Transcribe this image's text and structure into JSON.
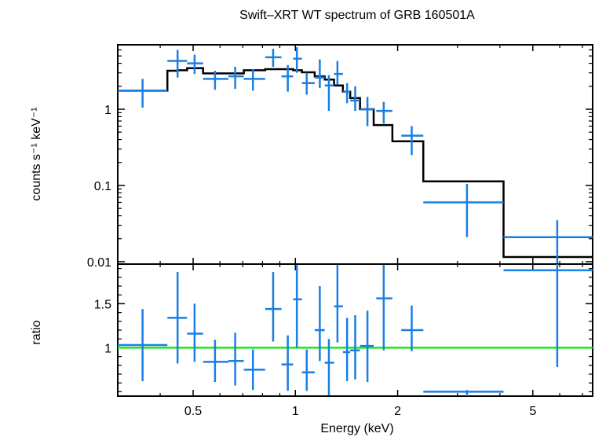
{
  "colors": {
    "data": "#1a7fe5",
    "model": "#000000",
    "ratio_line": "#1fe51f",
    "axes": "#000000"
  },
  "chart_data": [
    {
      "type": "scatter",
      "title": "Swift–XRT WT spectrum of GRB 160501A",
      "xlabel": "",
      "ylabel": "counts s⁻¹ keV⁻¹",
      "xscale": "log",
      "yscale": "log",
      "xlim": [
        0.3,
        7.5
      ],
      "ylim": [
        0.0093,
        7.0
      ],
      "yticks": [
        0.01,
        0.1,
        1
      ],
      "ytick_labels": [
        "0.01",
        "0.1",
        "1"
      ],
      "series": [
        {
          "kind": "data_with_errors",
          "points": [
            {
              "x": 0.355,
              "xlo": 0.3,
              "xhi": 0.42,
              "y": 1.75,
              "ylo": 1.05,
              "yhi": 2.5
            },
            {
              "x": 0.45,
              "xlo": 0.42,
              "xhi": 0.48,
              "y": 4.3,
              "ylo": 2.6,
              "yhi": 6.0
            },
            {
              "x": 0.505,
              "xlo": 0.48,
              "xhi": 0.535,
              "y": 4.0,
              "ylo": 2.9,
              "yhi": 5.2
            },
            {
              "x": 0.58,
              "xlo": 0.535,
              "xhi": 0.635,
              "y": 2.5,
              "ylo": 1.8,
              "yhi": 3.2
            },
            {
              "x": 0.665,
              "xlo": 0.635,
              "xhi": 0.705,
              "y": 2.7,
              "ylo": 1.85,
              "yhi": 3.6
            },
            {
              "x": 0.75,
              "xlo": 0.705,
              "xhi": 0.815,
              "y": 2.5,
              "ylo": 1.75,
              "yhi": 3.35
            },
            {
              "x": 0.86,
              "xlo": 0.815,
              "xhi": 0.91,
              "y": 4.8,
              "ylo": 3.6,
              "yhi": 6.2
            },
            {
              "x": 0.95,
              "xlo": 0.91,
              "xhi": 0.985,
              "y": 2.7,
              "ylo": 1.7,
              "yhi": 3.8
            },
            {
              "x": 1.01,
              "xlo": 0.985,
              "xhi": 1.045,
              "y": 4.6,
              "ylo": 3.0,
              "yhi": 6.5
            },
            {
              "x": 1.08,
              "xlo": 1.045,
              "xhi": 1.14,
              "y": 2.2,
              "ylo": 1.55,
              "yhi": 3.0
            },
            {
              "x": 1.18,
              "xlo": 1.14,
              "xhi": 1.22,
              "y": 2.6,
              "ylo": 1.9,
              "yhi": 4.5
            },
            {
              "x": 1.255,
              "xlo": 1.22,
              "xhi": 1.3,
              "y": 2.05,
              "ylo": 0.95,
              "yhi": 2.8
            },
            {
              "x": 1.33,
              "xlo": 1.3,
              "xhi": 1.38,
              "y": 2.9,
              "ylo": 2.1,
              "yhi": 4.3
            },
            {
              "x": 1.42,
              "xlo": 1.38,
              "xhi": 1.45,
              "y": 1.7,
              "ylo": 1.2,
              "yhi": 2.2
            },
            {
              "x": 1.5,
              "xlo": 1.45,
              "xhi": 1.55,
              "y": 1.3,
              "ylo": 0.95,
              "yhi": 2.0
            },
            {
              "x": 1.63,
              "xlo": 1.55,
              "xhi": 1.7,
              "y": 1.0,
              "ylo": 0.6,
              "yhi": 1.45
            },
            {
              "x": 1.82,
              "xlo": 1.73,
              "xhi": 1.93,
              "y": 0.95,
              "ylo": 0.65,
              "yhi": 1.25
            },
            {
              "x": 2.2,
              "xlo": 2.05,
              "xhi": 2.38,
              "y": 0.45,
              "ylo": 0.25,
              "yhi": 0.6
            },
            {
              "x": 3.2,
              "xlo": 2.38,
              "xhi": 4.1,
              "y": 0.06,
              "ylo": 0.021,
              "yhi": 0.105
            },
            {
              "x": 5.9,
              "xlo": 4.1,
              "xhi": 7.5,
              "y": 0.021,
              "ylo": 0.009,
              "yhi": 0.035
            }
          ]
        },
        {
          "kind": "model_step",
          "edges": [
            0.3,
            0.42,
            0.45,
            0.48,
            0.535,
            0.635,
            0.705,
            0.815,
            0.91,
            0.985,
            1.045,
            1.14,
            1.22,
            1.3,
            1.38,
            1.45,
            1.55,
            1.7,
            1.93,
            2.05,
            2.38,
            4.1,
            7.5
          ],
          "values": [
            1.75,
            3.2,
            3.25,
            3.45,
            2.95,
            2.95,
            3.25,
            3.35,
            3.35,
            3.25,
            3.05,
            2.7,
            2.45,
            2.05,
            1.7,
            1.4,
            1.0,
            0.62,
            0.38,
            0.38,
            0.113,
            0.0115
          ]
        }
      ]
    },
    {
      "type": "scatter",
      "xlabel": "Energy (keV)",
      "ylabel": "ratio",
      "xscale": "log",
      "yscale": "linear",
      "xlim": [
        0.3,
        7.5
      ],
      "ylim": [
        0.45,
        1.95
      ],
      "yticks": [
        1,
        1.5
      ],
      "ytick_labels": [
        "1",
        "1.5"
      ],
      "xticks": [
        0.5,
        1,
        2,
        5
      ],
      "xtick_labels": [
        "0.5",
        "1",
        "2",
        "5"
      ],
      "reference_line": 1,
      "series": [
        {
          "kind": "data_with_errors",
          "points": [
            {
              "x": 0.355,
              "xlo": 0.3,
              "xhi": 0.42,
              "y": 1.03,
              "ylo": 0.62,
              "yhi": 1.44
            },
            {
              "x": 0.45,
              "xlo": 0.42,
              "xhi": 0.48,
              "y": 1.34,
              "ylo": 0.82,
              "yhi": 1.86
            },
            {
              "x": 0.505,
              "xlo": 0.48,
              "xhi": 0.535,
              "y": 1.16,
              "ylo": 0.84,
              "yhi": 1.5
            },
            {
              "x": 0.58,
              "xlo": 0.535,
              "xhi": 0.635,
              "y": 0.84,
              "ylo": 0.61,
              "yhi": 1.09
            },
            {
              "x": 0.665,
              "xlo": 0.635,
              "xhi": 0.705,
              "y": 0.85,
              "ylo": 0.57,
              "yhi": 1.17
            },
            {
              "x": 0.75,
              "xlo": 0.705,
              "xhi": 0.815,
              "y": 0.75,
              "ylo": 0.52,
              "yhi": 0.98
            },
            {
              "x": 0.86,
              "xlo": 0.815,
              "xhi": 0.91,
              "y": 1.44,
              "ylo": 1.07,
              "yhi": 1.86
            },
            {
              "x": 0.95,
              "xlo": 0.91,
              "xhi": 0.985,
              "y": 0.81,
              "ylo": 0.51,
              "yhi": 1.14
            },
            {
              "x": 1.01,
              "xlo": 0.985,
              "xhi": 1.045,
              "y": 1.55,
              "ylo": 1.0,
              "yhi": 1.94
            },
            {
              "x": 1.08,
              "xlo": 1.045,
              "xhi": 1.14,
              "y": 0.72,
              "ylo": 0.51,
              "yhi": 0.98
            },
            {
              "x": 1.18,
              "xlo": 1.14,
              "xhi": 1.22,
              "y": 1.2,
              "ylo": 0.85,
              "yhi": 1.7
            },
            {
              "x": 1.255,
              "xlo": 1.22,
              "xhi": 1.3,
              "y": 0.83,
              "ylo": 0.46,
              "yhi": 1.1
            },
            {
              "x": 1.33,
              "xlo": 1.3,
              "xhi": 1.38,
              "y": 1.47,
              "ylo": 1.06,
              "yhi": 1.94
            },
            {
              "x": 1.42,
              "xlo": 1.38,
              "xhi": 1.45,
              "y": 0.95,
              "ylo": 0.62,
              "yhi": 1.34
            },
            {
              "x": 1.5,
              "xlo": 1.45,
              "xhi": 1.55,
              "y": 0.97,
              "ylo": 0.64,
              "yhi": 1.37
            },
            {
              "x": 1.63,
              "xlo": 1.55,
              "xhi": 1.7,
              "y": 1.02,
              "ylo": 0.61,
              "yhi": 1.42
            },
            {
              "x": 1.82,
              "xlo": 1.73,
              "xhi": 1.93,
              "y": 1.56,
              "ylo": 0.97,
              "yhi": 1.94
            },
            {
              "x": 2.2,
              "xlo": 2.05,
              "xhi": 2.38,
              "y": 1.2,
              "ylo": 0.96,
              "yhi": 1.48
            },
            {
              "x": 3.2,
              "xlo": 2.38,
              "xhi": 4.1,
              "y": 0.5,
              "ylo": 0.45,
              "yhi": 0.52
            },
            {
              "x": 5.9,
              "xlo": 4.1,
              "xhi": 7.5,
              "y": 1.88,
              "ylo": 0.78,
              "yhi": 1.95
            }
          ]
        }
      ]
    }
  ]
}
